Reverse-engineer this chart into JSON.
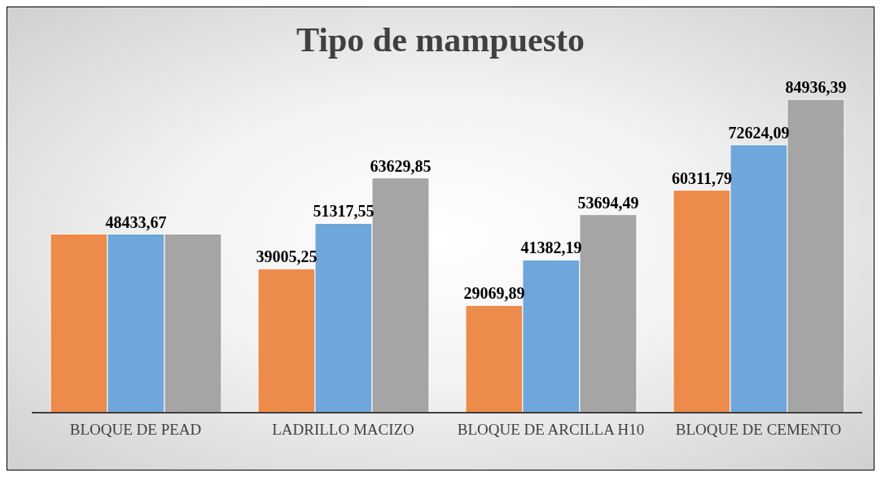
{
  "chart_data": {
    "type": "bar",
    "title": "Tipo de mampuesto",
    "categories": [
      "BLOQUE DE PEAD",
      "LADRILLO MACIZO",
      "BLOQUE DE ARCILLA H10",
      "BLOQUE DE CEMENTO"
    ],
    "series": [
      {
        "color": "#ed8b4a",
        "values": [
          48433.67,
          39005.25,
          29069.89,
          60311.79
        ],
        "value_labels": [
          null,
          "39005,25",
          "29069,89",
          "60311,79"
        ]
      },
      {
        "color": "#6fa6db",
        "values": [
          48433.67,
          51317.55,
          41382.19,
          72624.09
        ],
        "value_labels": [
          "48433,67",
          "51317,55",
          "41382,19",
          "72624,09"
        ]
      },
      {
        "color": "#a5a5a5",
        "values": [
          48433.67,
          63629.85,
          53694.49,
          84936.39
        ],
        "value_labels": [
          null,
          "63629,85",
          "53694,49",
          "84936,39"
        ]
      }
    ],
    "tick_labels": "x",
    "legend": false
  }
}
